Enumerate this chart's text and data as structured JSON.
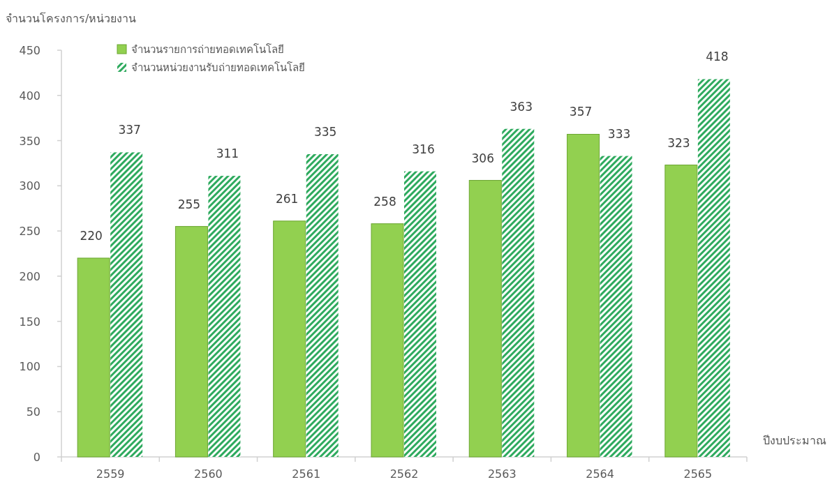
{
  "chart_data": {
    "type": "bar",
    "xlabel": "ปีงบประมาณ",
    "ylabel": "จำนวนโครงการ/หน่วยงาน",
    "categories": [
      "2559",
      "2560",
      "2561",
      "2562",
      "2563",
      "2564",
      "2565"
    ],
    "series": [
      {
        "name": "จำนวนรายการถ่ายทอดเทคโนโลยี",
        "color": "#92d050",
        "values": [
          220,
          255,
          261,
          258,
          306,
          357,
          323
        ]
      },
      {
        "name": "จำนวนหน่วยงานรับถ่ายทอดเทคโนโลยี",
        "color": "#2eaa5e",
        "values": [
          337,
          311,
          335,
          316,
          363,
          333,
          418
        ]
      }
    ],
    "ylim": [
      0,
      450
    ],
    "yticks": [
      0,
      50,
      100,
      150,
      200,
      250,
      300,
      350,
      400,
      450
    ],
    "data_labels": true,
    "legend": "top left",
    "grid": false
  }
}
